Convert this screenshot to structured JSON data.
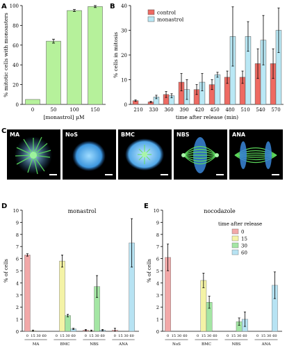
{
  "panels": {
    "a": "A",
    "b": "B",
    "c": "C",
    "d": "D",
    "e": "E"
  },
  "colors": {
    "green": "#b6f19b",
    "red": "#ee6a62",
    "blue": "#b9e8f5",
    "pink": "#f2a8a8",
    "yellow": "#f4f3a6",
    "mint": "#a4e6a4",
    "cyan": "#b7e3f3"
  },
  "micrographs": [
    {
      "label": "MA",
      "icon": "monoaster-cell-icon"
    },
    {
      "label": "NoS",
      "icon": "no-spindle-cell-icon"
    },
    {
      "label": "BMC",
      "icon": "bipolar-monoaster-cell-icon"
    },
    {
      "label": "NBS",
      "icon": "normal-bipolar-spindle-icon"
    },
    {
      "label": "ANA",
      "icon": "anaphase-cell-icon"
    }
  ],
  "chart_data": [
    {
      "id": "A",
      "type": "bar",
      "xlabel": "[monastrol] µM",
      "ylabel": "% mitotic cells with monoasters",
      "categories": [
        "0",
        "50",
        "100",
        "150"
      ],
      "values": [
        5,
        64,
        95,
        99
      ],
      "errors": [
        0,
        2,
        1,
        1
      ],
      "ylim": [
        0,
        100
      ],
      "yticks": [
        0,
        20,
        40,
        60,
        80,
        100
      ],
      "color": "green"
    },
    {
      "id": "B",
      "type": "bar",
      "xlabel": "time after release (min)",
      "ylabel": "% cells in mitosis",
      "categories": [
        "210",
        "330",
        "360",
        "390",
        "420",
        "450",
        "480",
        "510",
        "540",
        "570"
      ],
      "ylim": [
        0,
        40
      ],
      "yticks": [
        0,
        10,
        20,
        30,
        40
      ],
      "legend": {
        "position": "top-left"
      },
      "series": [
        {
          "name": "control",
          "color": "red",
          "values": [
            1.5,
            1,
            4,
            9,
            6,
            8,
            11,
            11,
            16.5,
            16.5
          ],
          "errors": [
            0.3,
            0.3,
            1.2,
            3.5,
            2,
            2,
            2.5,
            2.5,
            6,
            6
          ]
        },
        {
          "name": "monastrol",
          "color": "blue",
          "values": [
            0,
            3,
            3.5,
            6,
            9,
            12,
            27.5,
            27.5,
            26,
            30
          ],
          "errors": [
            0,
            0.7,
            0.8,
            4,
            3.5,
            1,
            12,
            6,
            10,
            9
          ]
        }
      ]
    },
    {
      "id": "D",
      "type": "bar",
      "title": "monastrol",
      "ylabel": "% of cells",
      "groups": [
        "MA",
        "BMC",
        "NBS",
        "ANA"
      ],
      "group_ticks": [
        "0",
        "15",
        "30",
        "60"
      ],
      "ylim": [
        0,
        10
      ],
      "yticks": [
        0,
        1,
        2,
        3,
        4,
        5,
        6,
        7,
        8,
        9,
        10
      ],
      "values": [
        [
          6.3,
          0.05,
          0,
          0
        ],
        [
          0,
          5.8,
          1.3,
          0.2
        ],
        [
          0.1,
          0.05,
          3.7,
          0.1
        ],
        [
          0.1,
          0,
          0,
          7.3
        ]
      ],
      "errors": [
        [
          0.1,
          0.05,
          0,
          0
        ],
        [
          0,
          0.5,
          0.1,
          0.05
        ],
        [
          0.05,
          0.05,
          0.9,
          0.05
        ],
        [
          0.15,
          0,
          0,
          2
        ]
      ]
    },
    {
      "id": "E",
      "type": "bar",
      "title": "nocodazole",
      "ylabel": "% of cells",
      "groups": [
        "NoS",
        "BMC",
        "NBS",
        "ANA"
      ],
      "group_ticks": [
        "0",
        "15",
        "30",
        "60"
      ],
      "ylim": [
        0,
        10
      ],
      "yticks": [
        0,
        1,
        2,
        3,
        4,
        5,
        6,
        7,
        8,
        9,
        10
      ],
      "legend": {
        "title": "time after release",
        "position": "top-right",
        "entries": [
          "0",
          "15",
          "30",
          "60"
        ]
      },
      "values": [
        [
          6.1,
          0,
          0,
          0
        ],
        [
          0,
          4.2,
          2.4,
          0
        ],
        [
          0,
          0,
          0.8,
          1.0
        ],
        [
          0,
          0,
          0,
          3.8
        ]
      ],
      "errors": [
        [
          1.1,
          0,
          0,
          0
        ],
        [
          0,
          0.6,
          0.5,
          0
        ],
        [
          0,
          0,
          0.3,
          0.6
        ],
        [
          0,
          0,
          0,
          1.1
        ]
      ]
    }
  ]
}
